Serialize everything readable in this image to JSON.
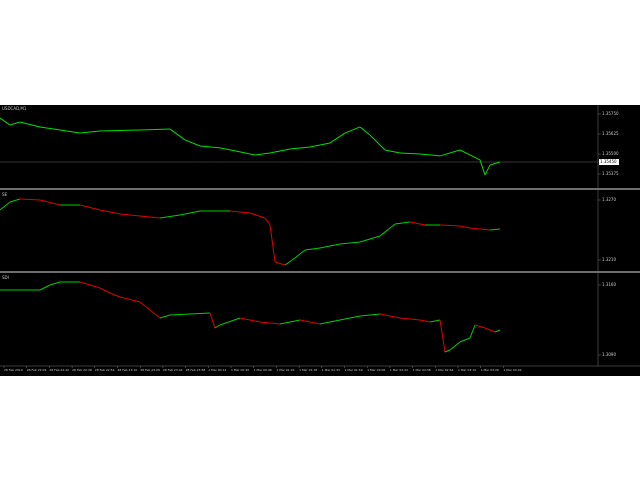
{
  "panels": [
    {
      "title": "USDCAD,M1",
      "ylim": [
        1.353,
        1.358
      ],
      "yticks": [
        {
          "value": 1.3575,
          "label": "1.35750"
        },
        {
          "value": 1.35625,
          "label": "1.35625"
        },
        {
          "value": 1.355,
          "label": "1.35500"
        },
        {
          "value": 1.35375,
          "label": "1.35375"
        }
      ],
      "current": {
        "value": 1.3545,
        "label": "1.35450"
      },
      "x": [
        0,
        10,
        20,
        40,
        60,
        80,
        100,
        140,
        170,
        185,
        200,
        220,
        240,
        255,
        270,
        290,
        310,
        330,
        345,
        360,
        370,
        385,
        400,
        420,
        440,
        460,
        470,
        480,
        485,
        490,
        500
      ],
      "values": [
        1.35725,
        1.35681,
        1.357,
        1.35669,
        1.3565,
        1.35631,
        1.35644,
        1.3565,
        1.35656,
        1.35588,
        1.3555,
        1.35538,
        1.35513,
        1.35494,
        1.35506,
        1.35531,
        1.35544,
        1.35569,
        1.35631,
        1.35669,
        1.35619,
        1.35525,
        1.35506,
        1.355,
        1.35488,
        1.35525,
        1.35494,
        1.35463,
        1.35369,
        1.35431,
        1.3545
      ]
    },
    {
      "title": "SE",
      "ylim": [
        1.32,
        1.3278
      ],
      "yticks": [
        {
          "value": 1.327,
          "label": "1.3270"
        },
        {
          "value": 1.321,
          "label": "1.3210"
        }
      ],
      "x": [
        0,
        10,
        20,
        40,
        60,
        80,
        100,
        120,
        140,
        160,
        180,
        200,
        230,
        250,
        265,
        270,
        275,
        285,
        295,
        305,
        320,
        340,
        360,
        380,
        395,
        410,
        425,
        440,
        460,
        470,
        480,
        490,
        500
      ],
      "values": [
        1.326,
        1.3268,
        1.3271,
        1.327,
        1.3265,
        1.3265,
        1.326,
        1.3256,
        1.3254,
        1.3252,
        1.3255,
        1.3259,
        1.3259,
        1.3257,
        1.3252,
        1.3245,
        1.3208,
        1.3205,
        1.3212,
        1.322,
        1.3222,
        1.3226,
        1.3228,
        1.3234,
        1.3246,
        1.3248,
        1.3245,
        1.3245,
        1.3244,
        1.3242,
        1.3241,
        1.324,
        1.3241
      ]
    },
    {
      "title": "SDI",
      "ylim": [
        1.308,
        1.317
      ],
      "yticks": [
        {
          "value": 1.316,
          "label": "1.3160"
        },
        {
          "value": 1.309,
          "label": "1.3090"
        }
      ],
      "x": [
        0,
        40,
        50,
        60,
        80,
        90,
        100,
        110,
        120,
        140,
        150,
        160,
        170,
        190,
        210,
        215,
        220,
        240,
        260,
        280,
        300,
        320,
        340,
        360,
        380,
        400,
        420,
        430,
        440,
        445,
        450,
        460,
        470,
        475,
        485,
        495,
        500
      ],
      "values": [
        1.3155,
        1.3155,
        1.316,
        1.3163,
        1.3163,
        1.316,
        1.3157,
        1.3152,
        1.3148,
        1.3143,
        1.3135,
        1.3127,
        1.313,
        1.3131,
        1.3132,
        1.3117,
        1.312,
        1.3127,
        1.3123,
        1.3121,
        1.3125,
        1.3121,
        1.3125,
        1.3129,
        1.3131,
        1.3127,
        1.3125,
        1.3123,
        1.3125,
        1.3093,
        1.3095,
        1.3103,
        1.3107,
        1.312,
        1.3117,
        1.3113,
        1.3115
      ]
    }
  ],
  "time_labels": [
    "28 Feb 2019",
    "28 Feb 22:06",
    "28 Feb 22:22",
    "28 Feb 22:38",
    "28 Feb 22:54",
    "28 Feb 23:10",
    "28 Feb 23:26",
    "28 Feb 23:42",
    "28 Feb 23:58",
    "1 Mar 00:14",
    "1 Mar 00:30",
    "1 Mar 00:46",
    "1 Mar 01:02",
    "1 Mar 01:18",
    "1 Mar 01:34",
    "1 Mar 01:50",
    "1 Mar 02:06",
    "1 Mar 02:22",
    "1 Mar 02:38",
    "1 Mar 02:54",
    "1 Mar 03:10",
    "1 Mar 03:26",
    "1 Mar 03:42"
  ]
}
